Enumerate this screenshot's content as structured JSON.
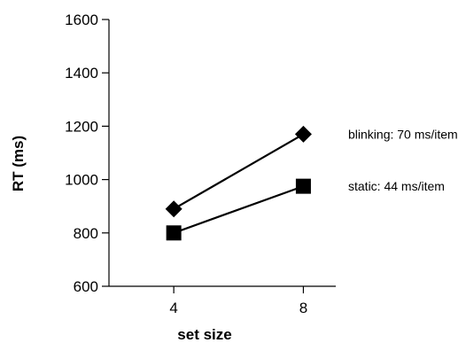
{
  "chart_data": {
    "type": "line",
    "xlabel": "set size",
    "ylabel": "RT (ms)",
    "x": [
      4,
      8
    ],
    "xlim": [
      2,
      9
    ],
    "xticks": [
      4,
      8
    ],
    "ylim": [
      600,
      1600
    ],
    "yticks": [
      600,
      800,
      1000,
      1200,
      1400,
      1600
    ],
    "grid": false,
    "series": [
      {
        "label": "blinking:  70 ms/item",
        "marker": "diamond",
        "values": [
          890,
          1170
        ]
      },
      {
        "label": "static:  44 ms/item",
        "marker": "square",
        "values": [
          800,
          975
        ]
      }
    ]
  }
}
